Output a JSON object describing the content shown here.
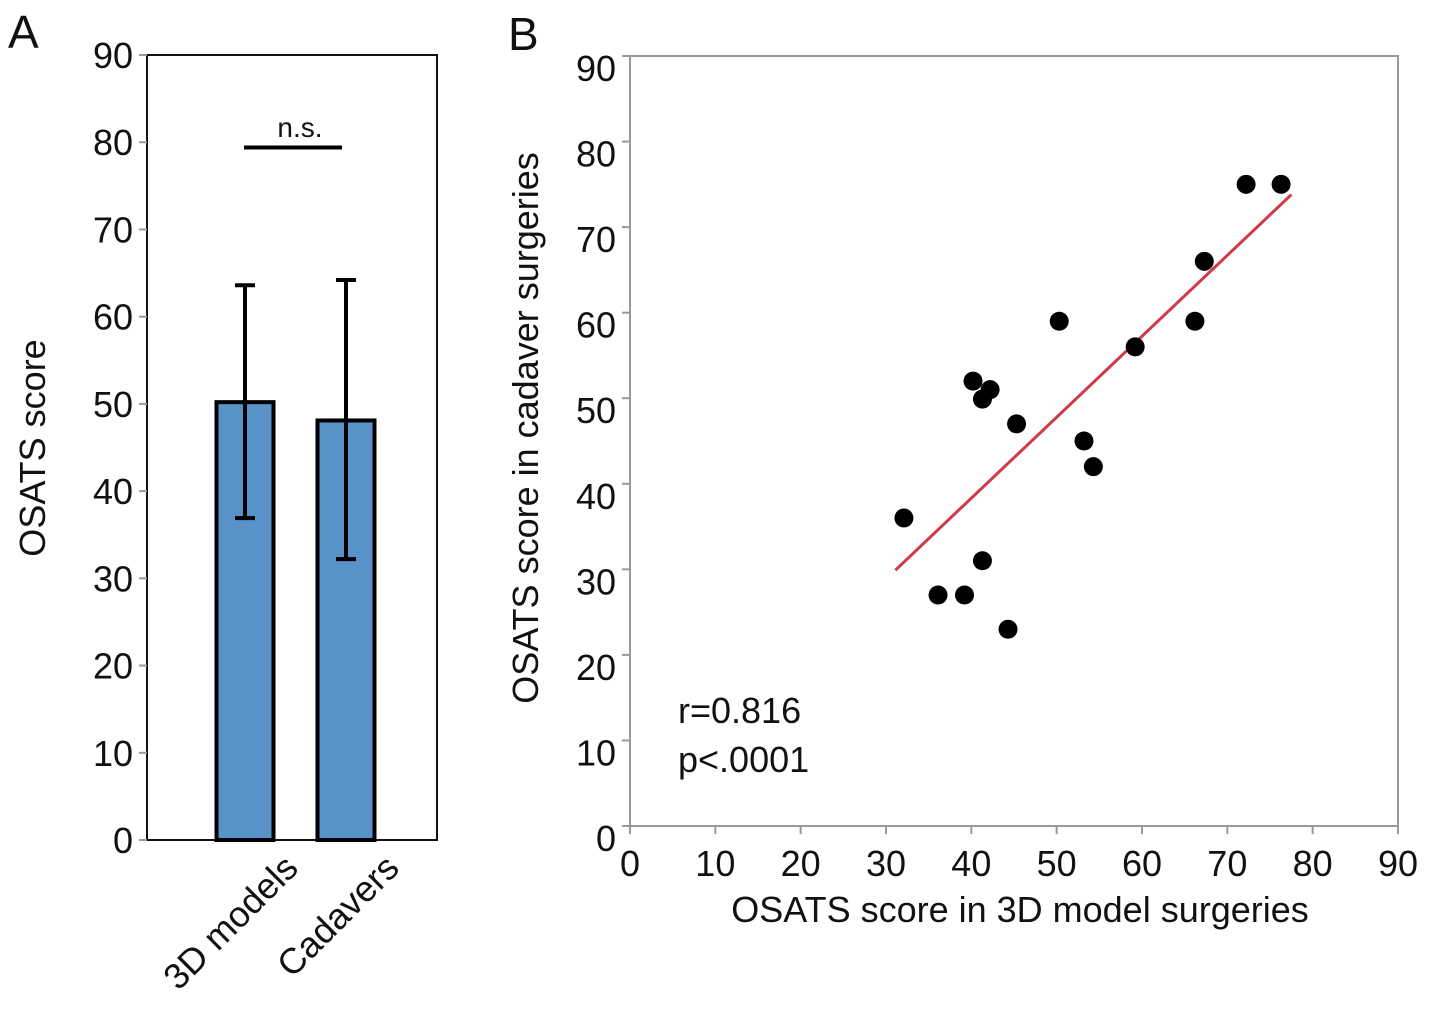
{
  "chart_data": [
    {
      "panel": "A",
      "type": "bar",
      "title": "",
      "xlabel": "",
      "ylabel": "OSATS score",
      "ylim": [
        0,
        90
      ],
      "yticks": [
        0,
        10,
        20,
        30,
        40,
        50,
        60,
        70,
        80,
        90
      ],
      "categories": [
        "3D models",
        "Cadavers"
      ],
      "values": [
        50.2,
        48.1
      ],
      "error_upper": [
        63.6,
        64.2
      ],
      "error_lower": [
        36.9,
        32.2
      ],
      "bar_color": "#5892c8",
      "annotation": {
        "text": "n.s.",
        "y": 79.4
      }
    },
    {
      "panel": "B",
      "type": "scatter",
      "xlabel": "OSATS score in 3D model surgeries",
      "ylabel": "OSATS score in cadaver surgeries",
      "xlim": [
        0,
        90
      ],
      "ylim": [
        0,
        90
      ],
      "xticks": [
        0,
        10,
        20,
        30,
        40,
        50,
        60,
        70,
        80,
        90
      ],
      "yticks": [
        0,
        10,
        20,
        30,
        40,
        50,
        60,
        70,
        80,
        90
      ],
      "points": [
        [
          32.1,
          36
        ],
        [
          36.1,
          27
        ],
        [
          39.2,
          27
        ],
        [
          40.2,
          52
        ],
        [
          42.2,
          51
        ],
        [
          41.3,
          49.9
        ],
        [
          41.3,
          31
        ],
        [
          44.3,
          23
        ],
        [
          45.3,
          47
        ],
        [
          50.3,
          59
        ],
        [
          53.2,
          45
        ],
        [
          54.3,
          42
        ],
        [
          59.2,
          56
        ],
        [
          66.2,
          59
        ],
        [
          67.3,
          66
        ],
        [
          72.2,
          75
        ],
        [
          76.3,
          75
        ]
      ],
      "fit_line": {
        "x": [
          31.1,
          77.5
        ],
        "y": [
          29.9,
          73.8
        ],
        "color": "#d03a48"
      },
      "point_color": "#000000",
      "annotations": [
        "r=0.816",
        "p<.0001"
      ]
    }
  ],
  "panel_labels": [
    "A",
    "B"
  ]
}
